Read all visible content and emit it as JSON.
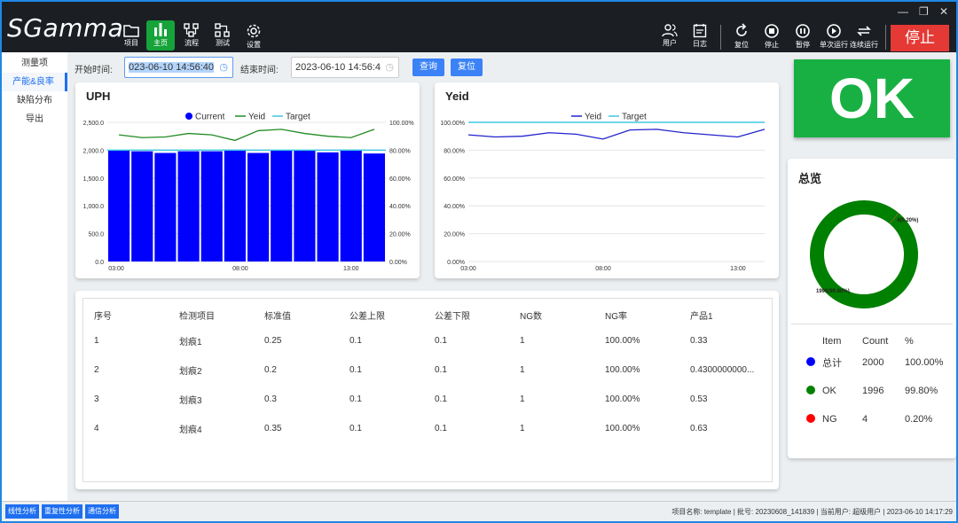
{
  "app": {
    "logo": "SGamma"
  },
  "toolbar_left": [
    {
      "label": "项目",
      "icon": "folder-icon"
    },
    {
      "label": "主页",
      "icon": "bar-chart-icon"
    },
    {
      "label": "流程",
      "icon": "flow-icon"
    },
    {
      "label": "测试",
      "icon": "test-icon"
    },
    {
      "label": "设置",
      "icon": "gear-icon"
    }
  ],
  "toolbar_right": [
    {
      "label": "用户",
      "icon": "users-icon"
    },
    {
      "label": "日志",
      "icon": "log-icon"
    },
    {
      "label": "复位",
      "icon": "reset-icon"
    },
    {
      "label": "停止",
      "icon": "stop-icon"
    },
    {
      "label": "暂停",
      "icon": "pause-icon"
    },
    {
      "label": "单次运行",
      "icon": "play-icon"
    },
    {
      "label": "连续运行",
      "icon": "repeat-icon"
    }
  ],
  "stop_button": "停止",
  "sidebar": [
    "测量项",
    "产能&良率",
    "缺陷分布",
    "导出"
  ],
  "filter": {
    "start_label": "开始时间:",
    "start_value": "023-06-10 14:56:40",
    "end_label": "结束时间:",
    "end_value": "2023-06-10 14:56:4",
    "query": "查询",
    "reset": "复位"
  },
  "uph_card": {
    "title": "UPH"
  },
  "yeid_card": {
    "title": "Yeid"
  },
  "ok_label": "OK",
  "overview": {
    "title": "总览",
    "donut_ng_label": "4(0.20%)",
    "donut_ok_label": "1996(99.80%)",
    "headers": [
      "Item",
      "Count",
      "%"
    ],
    "rows": [
      {
        "color": "#0000ff",
        "item": "总计",
        "count": "2000",
        "pct": "100.00%"
      },
      {
        "color": "#008000",
        "item": "OK",
        "count": "1996",
        "pct": "99.80%"
      },
      {
        "color": "#ff0000",
        "item": "NG",
        "count": "4",
        "pct": "0.20%"
      }
    ]
  },
  "table": {
    "headers": [
      "序号",
      "检测项目",
      "标准值",
      "公差上限",
      "公差下限",
      "NG数",
      "NG率",
      "产品1"
    ],
    "rows": [
      [
        "1",
        "划痕1",
        "0.25",
        "0.1",
        "0.1",
        "1",
        "100.00%",
        "0.33"
      ],
      [
        "2",
        "划痕2",
        "0.2",
        "0.1",
        "0.1",
        "1",
        "100.00%",
        "0.4300000000..."
      ],
      [
        "3",
        "划痕3",
        "0.3",
        "0.1",
        "0.1",
        "1",
        "100.00%",
        "0.53"
      ],
      [
        "4",
        "划痕4",
        "0.35",
        "0.1",
        "0.1",
        "1",
        "100.00%",
        "0.63"
      ]
    ]
  },
  "footer": {
    "tabs": [
      "线性分析",
      "重复性分析",
      "通信分析"
    ],
    "status": "项目名称:   template  |  批号:   20230608_141839  |  当前用户:   超级用户  |  2023-06-10 14:17:29"
  },
  "colors": {
    "current": "#0000ff",
    "yeid_uph": "#228b22",
    "yeid_line": "#2222cc",
    "target": "#40c8e0",
    "ok": "#19b043",
    "stop": "#e53935",
    "accent": "#1e6ff0"
  },
  "chart_data": [
    {
      "type": "bar",
      "title": "UPH",
      "categories": [
        "03:00",
        "",
        "",
        "",
        "",
        "08:00",
        "",
        "",
        "",
        "",
        "13:00",
        ""
      ],
      "x_ticks": [
        "03:00",
        "08:00",
        "13:00"
      ],
      "y_ticks": [
        "0.0",
        "500.0",
        "1,000.0",
        "1,500.0",
        "2,000.0",
        "2,500.0"
      ],
      "y2_ticks": [
        "0.00%",
        "20.00%",
        "40.00%",
        "60.00%",
        "80.00%",
        "100.00%"
      ],
      "ylim": [
        0,
        2500
      ],
      "y2lim": [
        0,
        100
      ],
      "legend": [
        "Current",
        "Yeid",
        "Target"
      ],
      "series": [
        {
          "name": "Current",
          "kind": "bar",
          "values": [
            2000,
            1980,
            1950,
            1980,
            1980,
            2010,
            1950,
            2000,
            1990,
            1960,
            2010,
            1940
          ]
        },
        {
          "name": "Yeid",
          "kind": "line",
          "axis": "y2",
          "values": [
            91,
            89,
            89.5,
            92,
            91,
            87,
            94,
            95,
            92,
            90,
            89,
            95
          ]
        },
        {
          "name": "Target",
          "kind": "line",
          "values": [
            2000,
            2000,
            2000,
            2000,
            2000,
            2000,
            2000,
            2000,
            2000,
            2000,
            2000,
            2000
          ]
        }
      ]
    },
    {
      "type": "line",
      "title": "Yeid",
      "x_ticks": [
        "03:00",
        "08:00",
        "13:00"
      ],
      "y_ticks": [
        "0.00%",
        "20.00%",
        "40.00%",
        "60.00%",
        "80.00%",
        "100.00%"
      ],
      "ylim": [
        0,
        100
      ],
      "legend": [
        "Yeid",
        "Target"
      ],
      "series": [
        {
          "name": "Yeid",
          "values": [
            91,
            89.5,
            90,
            92.5,
            91.5,
            88,
            94.5,
            95,
            92.5,
            91,
            89.5,
            95
          ]
        },
        {
          "name": "Target",
          "values": [
            100,
            100,
            100,
            100,
            100,
            100,
            100,
            100,
            100,
            100,
            100,
            100
          ]
        }
      ]
    },
    {
      "type": "pie",
      "title": "总览",
      "categories": [
        "OK",
        "NG"
      ],
      "values": [
        1996,
        4
      ],
      "labels": [
        "1996(99.80%)",
        "4(0.20%)"
      ]
    }
  ]
}
